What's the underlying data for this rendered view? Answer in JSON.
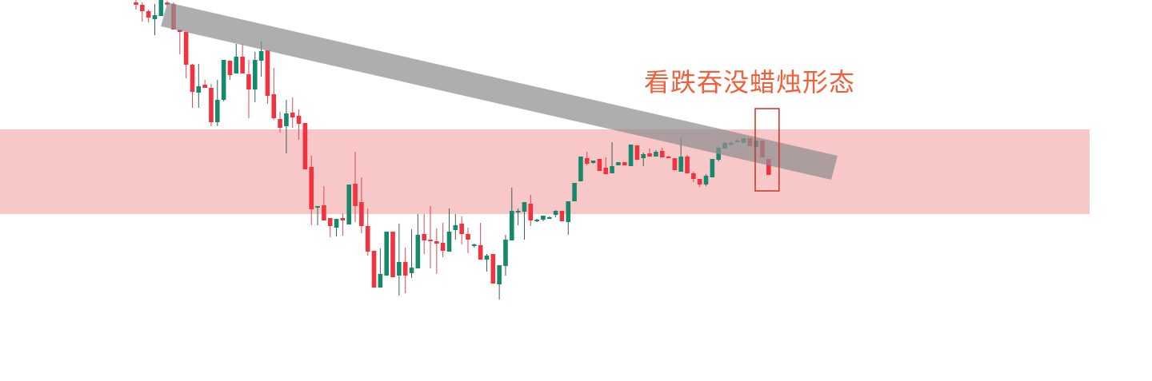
{
  "chart_data": {
    "type": "candlestick",
    "title": "",
    "xlabel": "",
    "ylabel": "",
    "ylim": [
      0,
      50
    ],
    "grid": false,
    "axes_visible": false,
    "colors": {
      "up": "#17896b",
      "down": "#f2323f",
      "zone": "#f8c4c4",
      "trendline": "#8f8f8f",
      "highlight_box": "#c8322a",
      "annotation_text": "#f0603a",
      "background": "#ffffff"
    },
    "candles": [
      [
        49.7,
        50,
        48.8,
        49.4
      ],
      [
        49.4,
        49.7,
        47.3,
        48.6
      ],
      [
        48.6,
        48.8,
        47.2,
        47.8
      ],
      [
        47.6,
        49.5,
        45.6,
        48.1
      ],
      [
        48,
        50,
        48,
        50
      ],
      [
        49.7,
        49.9,
        49.3,
        49.4
      ],
      [
        49.5,
        49.7,
        46.3,
        46.3
      ],
      [
        46.3,
        46.3,
        43.2,
        46.0
      ],
      [
        46.0,
        46.0,
        40.2,
        41.9
      ],
      [
        41.9,
        42,
        36.5,
        38.5
      ],
      [
        38.4,
        42,
        36.5,
        39.2
      ],
      [
        39.4,
        40,
        39,
        39
      ],
      [
        39,
        39.5,
        34.2,
        34.7
      ],
      [
        34.7,
        40,
        34.2,
        37.5
      ],
      [
        37.5,
        42.5,
        37.3,
        42.5
      ],
      [
        42.4,
        42.4,
        40,
        40.6
      ],
      [
        40.8,
        44.5,
        40.8,
        42.9
      ],
      [
        42.9,
        44.5,
        40.8,
        40.8
      ],
      [
        40.7,
        42.5,
        35.2,
        38.8
      ],
      [
        38.8,
        43.5,
        37.2,
        42.5
      ],
      [
        42.4,
        44.8,
        40.4,
        43.6
      ],
      [
        43.7,
        43.7,
        37,
        38
      ],
      [
        38.2,
        41.5,
        35,
        35.2
      ],
      [
        35.1,
        36,
        33.4,
        34
      ],
      [
        34.2,
        37.5,
        30.8,
        35.8
      ],
      [
        35.9,
        37.8,
        34,
        35.3
      ],
      [
        35.5,
        36.3,
        32.5,
        34.5
      ],
      [
        34.6,
        34.6,
        28.8,
        28.8
      ],
      [
        29.1,
        30.5,
        21.8,
        23.8
      ],
      [
        24,
        24.2,
        21.8,
        24.2
      ],
      [
        24.3,
        26.7,
        22.4,
        22.4
      ],
      [
        22.7,
        22.7,
        20.3,
        21.7
      ],
      [
        21.5,
        22.6,
        20.4,
        22.6
      ],
      [
        22.7,
        23.3,
        20.5,
        22.4
      ],
      [
        21.9,
        26.9,
        21.9,
        26.9
      ],
      [
        27,
        31,
        22.2,
        24.2
      ],
      [
        24.7,
        27.8,
        20.8,
        21.7
      ],
      [
        21.7,
        23.9,
        18,
        18.5
      ],
      [
        18.6,
        18.6,
        14,
        14
      ],
      [
        14,
        18.9,
        14,
        15.7
      ],
      [
        15.5,
        21,
        15.5,
        21
      ],
      [
        21,
        21,
        15.3,
        15.3
      ],
      [
        15.5,
        22,
        13,
        17.2
      ],
      [
        17.2,
        19,
        13.3,
        15.5
      ],
      [
        15.8,
        21.3,
        15.2,
        16.5
      ],
      [
        16.4,
        23.2,
        16.4,
        20.6
      ],
      [
        20.7,
        23.2,
        18.2,
        19.9
      ],
      [
        20,
        24.2,
        16.4,
        19.8
      ],
      [
        19.8,
        21.4,
        15.7,
        19.5
      ],
      [
        19.6,
        22.1,
        17.8,
        18.6
      ],
      [
        18.5,
        23.9,
        18.5,
        21
      ],
      [
        21.2,
        23.2,
        20,
        21.8
      ],
      [
        22,
        22.9,
        19.4,
        20.7
      ],
      [
        20.7,
        21.5,
        18.3,
        20
      ],
      [
        19.2,
        19.5,
        19,
        19.4
      ],
      [
        19.3,
        22.1,
        17.5,
        17.5
      ],
      [
        17.5,
        18.2,
        16,
        18
      ],
      [
        18.2,
        18.2,
        14.5,
        14.5
      ],
      [
        14.4,
        16.8,
        12.5,
        16.8
      ],
      [
        16.7,
        20.6,
        15.5,
        20
      ],
      [
        19.9,
        26.5,
        19.9,
        23.6
      ],
      [
        23.4,
        23.9,
        21.8,
        23.6
      ],
      [
        23.5,
        24.7,
        20,
        24.7
      ],
      [
        24.5,
        25.6,
        21.7,
        22.4
      ],
      [
        22.3,
        22.6,
        22.2,
        22.5
      ],
      [
        22.5,
        23,
        22.3,
        23
      ],
      [
        22.7,
        22.9,
        22.6,
        22.8
      ],
      [
        23.1,
        23.7,
        22.8,
        23.6
      ],
      [
        23.6,
        23.6,
        22.3,
        22.3
      ],
      [
        22.2,
        24.8,
        20.6,
        24.8
      ],
      [
        24.8,
        27.1,
        24.8,
        27.1
      ],
      [
        27.3,
        30.4,
        27.3,
        30.4
      ],
      [
        30.2,
        31,
        29.3,
        29.5
      ],
      [
        29.6,
        29.9,
        29.5,
        29.9
      ],
      [
        30.1,
        30.1,
        28.6,
        28.6
      ],
      [
        29,
        30.3,
        28.2,
        28.2
      ],
      [
        28.3,
        32.2,
        28.3,
        29.2
      ],
      [
        29.3,
        29.7,
        29.3,
        29.7
      ],
      [
        29.7,
        29.7,
        29.3,
        29.3
      ],
      [
        29.2,
        31.9,
        29.2,
        31.9
      ],
      [
        31.8,
        31.8,
        30,
        30
      ],
      [
        30.2,
        30.9,
        29.2,
        30.7
      ],
      [
        30.8,
        31.4,
        30.4,
        30.4
      ],
      [
        30.4,
        31.2,
        30.4,
        31
      ],
      [
        31.1,
        31.5,
        30.3,
        30.3
      ],
      [
        30.4,
        30.5,
        30.3,
        30.3
      ],
      [
        30.2,
        30.2,
        28.7,
        28.7
      ],
      [
        28.5,
        32.7,
        28.5,
        30.4
      ],
      [
        30.4,
        30.6,
        28.3,
        28.3
      ],
      [
        28.3,
        28.5,
        27.2,
        27.6
      ],
      [
        27.6,
        27.6,
        26.6,
        26.9
      ],
      [
        26.9,
        28.2,
        26.7,
        28
      ],
      [
        27.8,
        30.1,
        27.8,
        30.1
      ],
      [
        30,
        31.7,
        29.8,
        31.5
      ],
      [
        31.4,
        32.2,
        31.4,
        32.1
      ],
      [
        31.9,
        32.3,
        31.7,
        32.1
      ],
      [
        32.3,
        32.6,
        32.2,
        32.4
      ],
      [
        32.1,
        32.7,
        32.1,
        32.7
      ],
      [
        32.7,
        32.7,
        31.7,
        31.7
      ],
      [
        31.6,
        32.4,
        31.6,
        32.4
      ],
      [
        32.4,
        32.4,
        30.3,
        30.3
      ],
      [
        30.1,
        30.1,
        28.1,
        28.1
      ]
    ],
    "candle_format": [
      "open",
      "high",
      "low",
      "close"
    ],
    "resistance_zone": [
      23.2,
      33.8
    ],
    "trendline": {
      "from": {
        "index": 5,
        "price": 49.7
      },
      "to": {
        "index": 112,
        "price": 30.5
      },
      "band_width": 3
    },
    "highlight": {
      "from_index": 100,
      "to_index": 101
    },
    "annotation": "看跌吞没蜡烛形态"
  }
}
